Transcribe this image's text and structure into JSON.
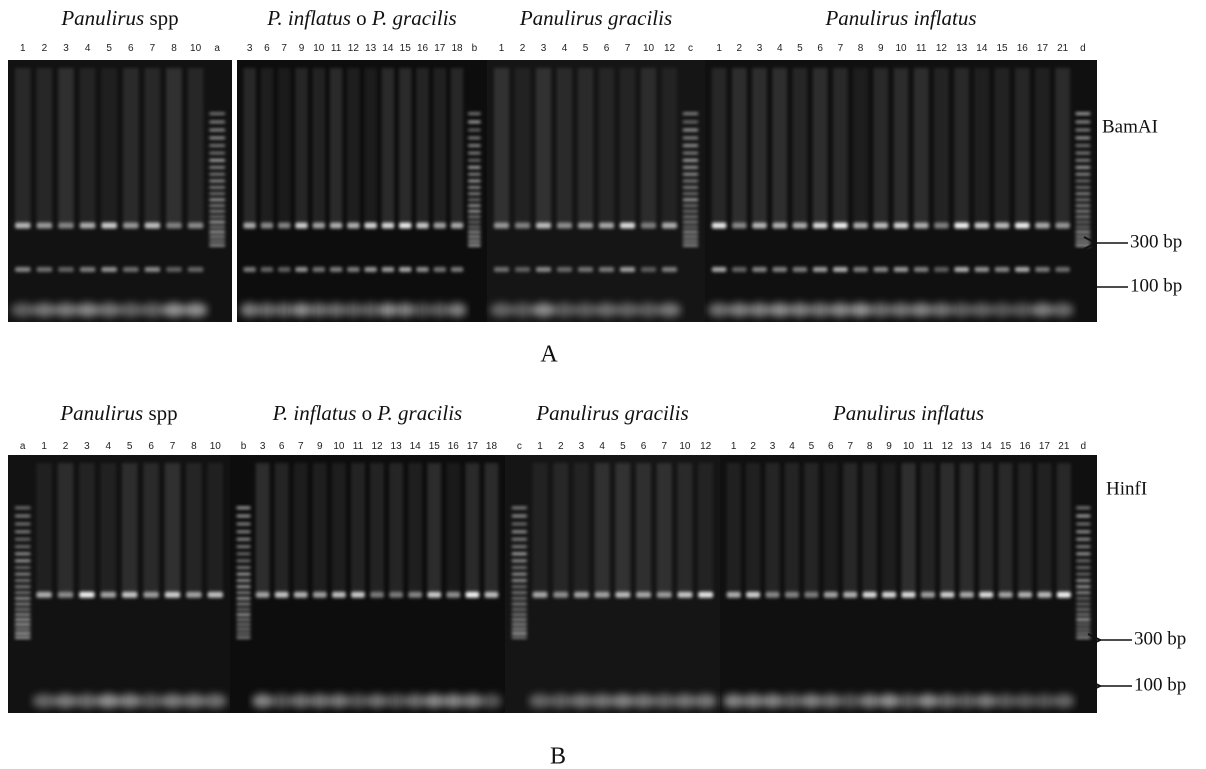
{
  "panels": [
    {
      "label": "A",
      "enzyme": "BamAI",
      "markers": [
        "300 bp",
        "100 bp"
      ],
      "groups": [
        {
          "title": [
            {
              "text": "Panulirus",
              "italic": true
            },
            {
              "text": " spp",
              "italic": false
            }
          ],
          "lanes": [
            "1",
            "2",
            "3",
            "4",
            "5",
            "6",
            "7",
            "8",
            "10",
            "a"
          ]
        },
        {
          "title": [
            {
              "text": "P. inflatus",
              "italic": true
            },
            {
              "text": " o ",
              "italic": false
            },
            {
              "text": "P. gracilis",
              "italic": true
            }
          ],
          "lanes": [
            "3",
            "6",
            "7",
            "9",
            "10",
            "11",
            "12",
            "13",
            "14",
            "15",
            "16",
            "17",
            "18",
            "b"
          ]
        },
        {
          "title": [
            {
              "text": "Panulirus gracilis",
              "italic": true
            }
          ],
          "lanes": [
            "1",
            "2",
            "3",
            "4",
            "5",
            "6",
            "7",
            "10",
            "12",
            "c"
          ]
        },
        {
          "title": [
            {
              "text": "Panulirus inflatus",
              "italic": true
            }
          ],
          "lanes": [
            "1",
            "2",
            "3",
            "4",
            "5",
            "6",
            "7",
            "8",
            "9",
            "10",
            "11",
            "12",
            "13",
            "14",
            "15",
            "16",
            "17",
            "21",
            "d"
          ]
        }
      ]
    },
    {
      "label": "B",
      "enzyme": "HinfI",
      "markers": [
        "300 bp",
        "100 bp"
      ],
      "groups": [
        {
          "title": [
            {
              "text": "Panulirus",
              "italic": true
            },
            {
              "text": " spp",
              "italic": false
            }
          ],
          "lanes": [
            "a",
            "1",
            "2",
            "3",
            "4",
            "5",
            "6",
            "7",
            "8",
            "10"
          ]
        },
        {
          "title": [
            {
              "text": "P. inflatus",
              "italic": true
            },
            {
              "text": " o ",
              "italic": false
            },
            {
              "text": "P. gracilis",
              "italic": true
            }
          ],
          "lanes": [
            "b",
            "3",
            "6",
            "7",
            "9",
            "10",
            "11",
            "12",
            "13",
            "14",
            "15",
            "16",
            "17",
            "18"
          ]
        },
        {
          "title": [
            {
              "text": "Panulirus gracilis",
              "italic": true
            }
          ],
          "lanes": [
            "c",
            "1",
            "2",
            "3",
            "4",
            "5",
            "6",
            "7",
            "10",
            "12"
          ]
        },
        {
          "title": [
            {
              "text": "Panulirus inflatus",
              "italic": true
            }
          ],
          "lanes": [
            "1",
            "2",
            "3",
            "4",
            "5",
            "6",
            "7",
            "8",
            "9",
            "10",
            "11",
            "12",
            "13",
            "14",
            "15",
            "16",
            "17",
            "21",
            "d"
          ]
        }
      ]
    }
  ]
}
